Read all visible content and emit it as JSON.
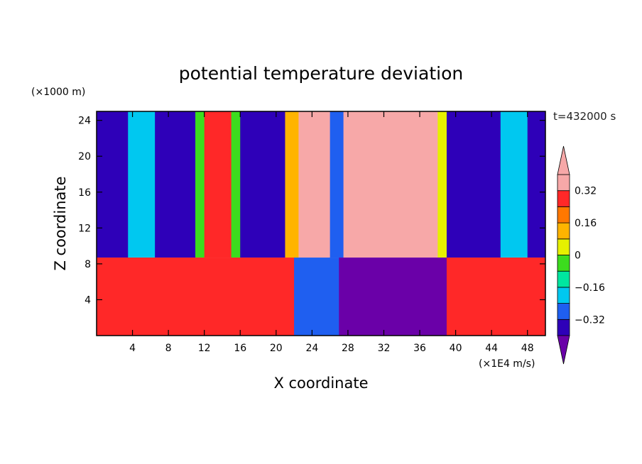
{
  "chart_data": {
    "type": "heatmap",
    "title": "potential temperature deviation",
    "xlabel": "X coordinate",
    "ylabel": "Z coordinate",
    "x_unit": "(×1E4 m/s)",
    "y_unit": "(×1000 m)",
    "time_label": "t=432000 s",
    "xlim": [
      0,
      50
    ],
    "ylim": [
      0,
      25
    ],
    "x_ticks": [
      4,
      8,
      12,
      16,
      20,
      24,
      28,
      32,
      36,
      40,
      44,
      48
    ],
    "y_ticks": [
      4,
      8,
      12,
      16,
      20,
      24
    ],
    "colorbar": {
      "labels": [
        "0.32",
        "0.16",
        "0",
        "−0.16",
        "−0.32"
      ],
      "label_values": [
        0.32,
        0.16,
        0,
        -0.16,
        -0.32
      ],
      "levels": [
        -0.4,
        -0.32,
        -0.24,
        -0.16,
        -0.08,
        0,
        0.08,
        0.16,
        0.24,
        0.32,
        0.4
      ],
      "colors": [
        "#6a00a8",
        "#2e00b8",
        "#1f5ff0",
        "#00c8f0",
        "#00e6a0",
        "#3cdc1e",
        "#e6f000",
        "#ffb400",
        "#ff7800",
        "#ff2828",
        "#f7a8a8"
      ],
      "extend": "both"
    },
    "upper_layer": {
      "z_range": [
        8.7,
        25
      ],
      "bands": [
        {
          "x": [
            0,
            3.5
          ],
          "value": -0.33
        },
        {
          "x": [
            3.5,
            6.5
          ],
          "value": -0.22
        },
        {
          "x": [
            6.5,
            11
          ],
          "value": -0.38
        },
        {
          "x": [
            11,
            12
          ],
          "value": -0.05
        },
        {
          "x": [
            12,
            15
          ],
          "value": 0.28
        },
        {
          "x": [
            15,
            16
          ],
          "value": -0.05
        },
        {
          "x": [
            16,
            21
          ],
          "value": -0.36
        },
        {
          "x": [
            21,
            22.5
          ],
          "value": 0.12
        },
        {
          "x": [
            22.5,
            26
          ],
          "value": 0.38
        },
        {
          "x": [
            26,
            27.5
          ],
          "value": -0.3
        },
        {
          "x": [
            27.5,
            38
          ],
          "value": 0.42
        },
        {
          "x": [
            38,
            39
          ],
          "value": 0.05
        },
        {
          "x": [
            39,
            45
          ],
          "value": -0.38
        },
        {
          "x": [
            45,
            48
          ],
          "value": -0.22
        },
        {
          "x": [
            48,
            50
          ],
          "value": -0.34
        }
      ]
    },
    "lower_layer": {
      "z_range": [
        0,
        8.7
      ],
      "bands": [
        {
          "x": [
            0,
            22
          ],
          "value": 0.3
        },
        {
          "x": [
            22,
            27
          ],
          "value": -0.25
        },
        {
          "x": [
            27,
            39
          ],
          "value": -0.42
        },
        {
          "x": [
            39,
            50
          ],
          "value": 0.3
        }
      ]
    }
  }
}
